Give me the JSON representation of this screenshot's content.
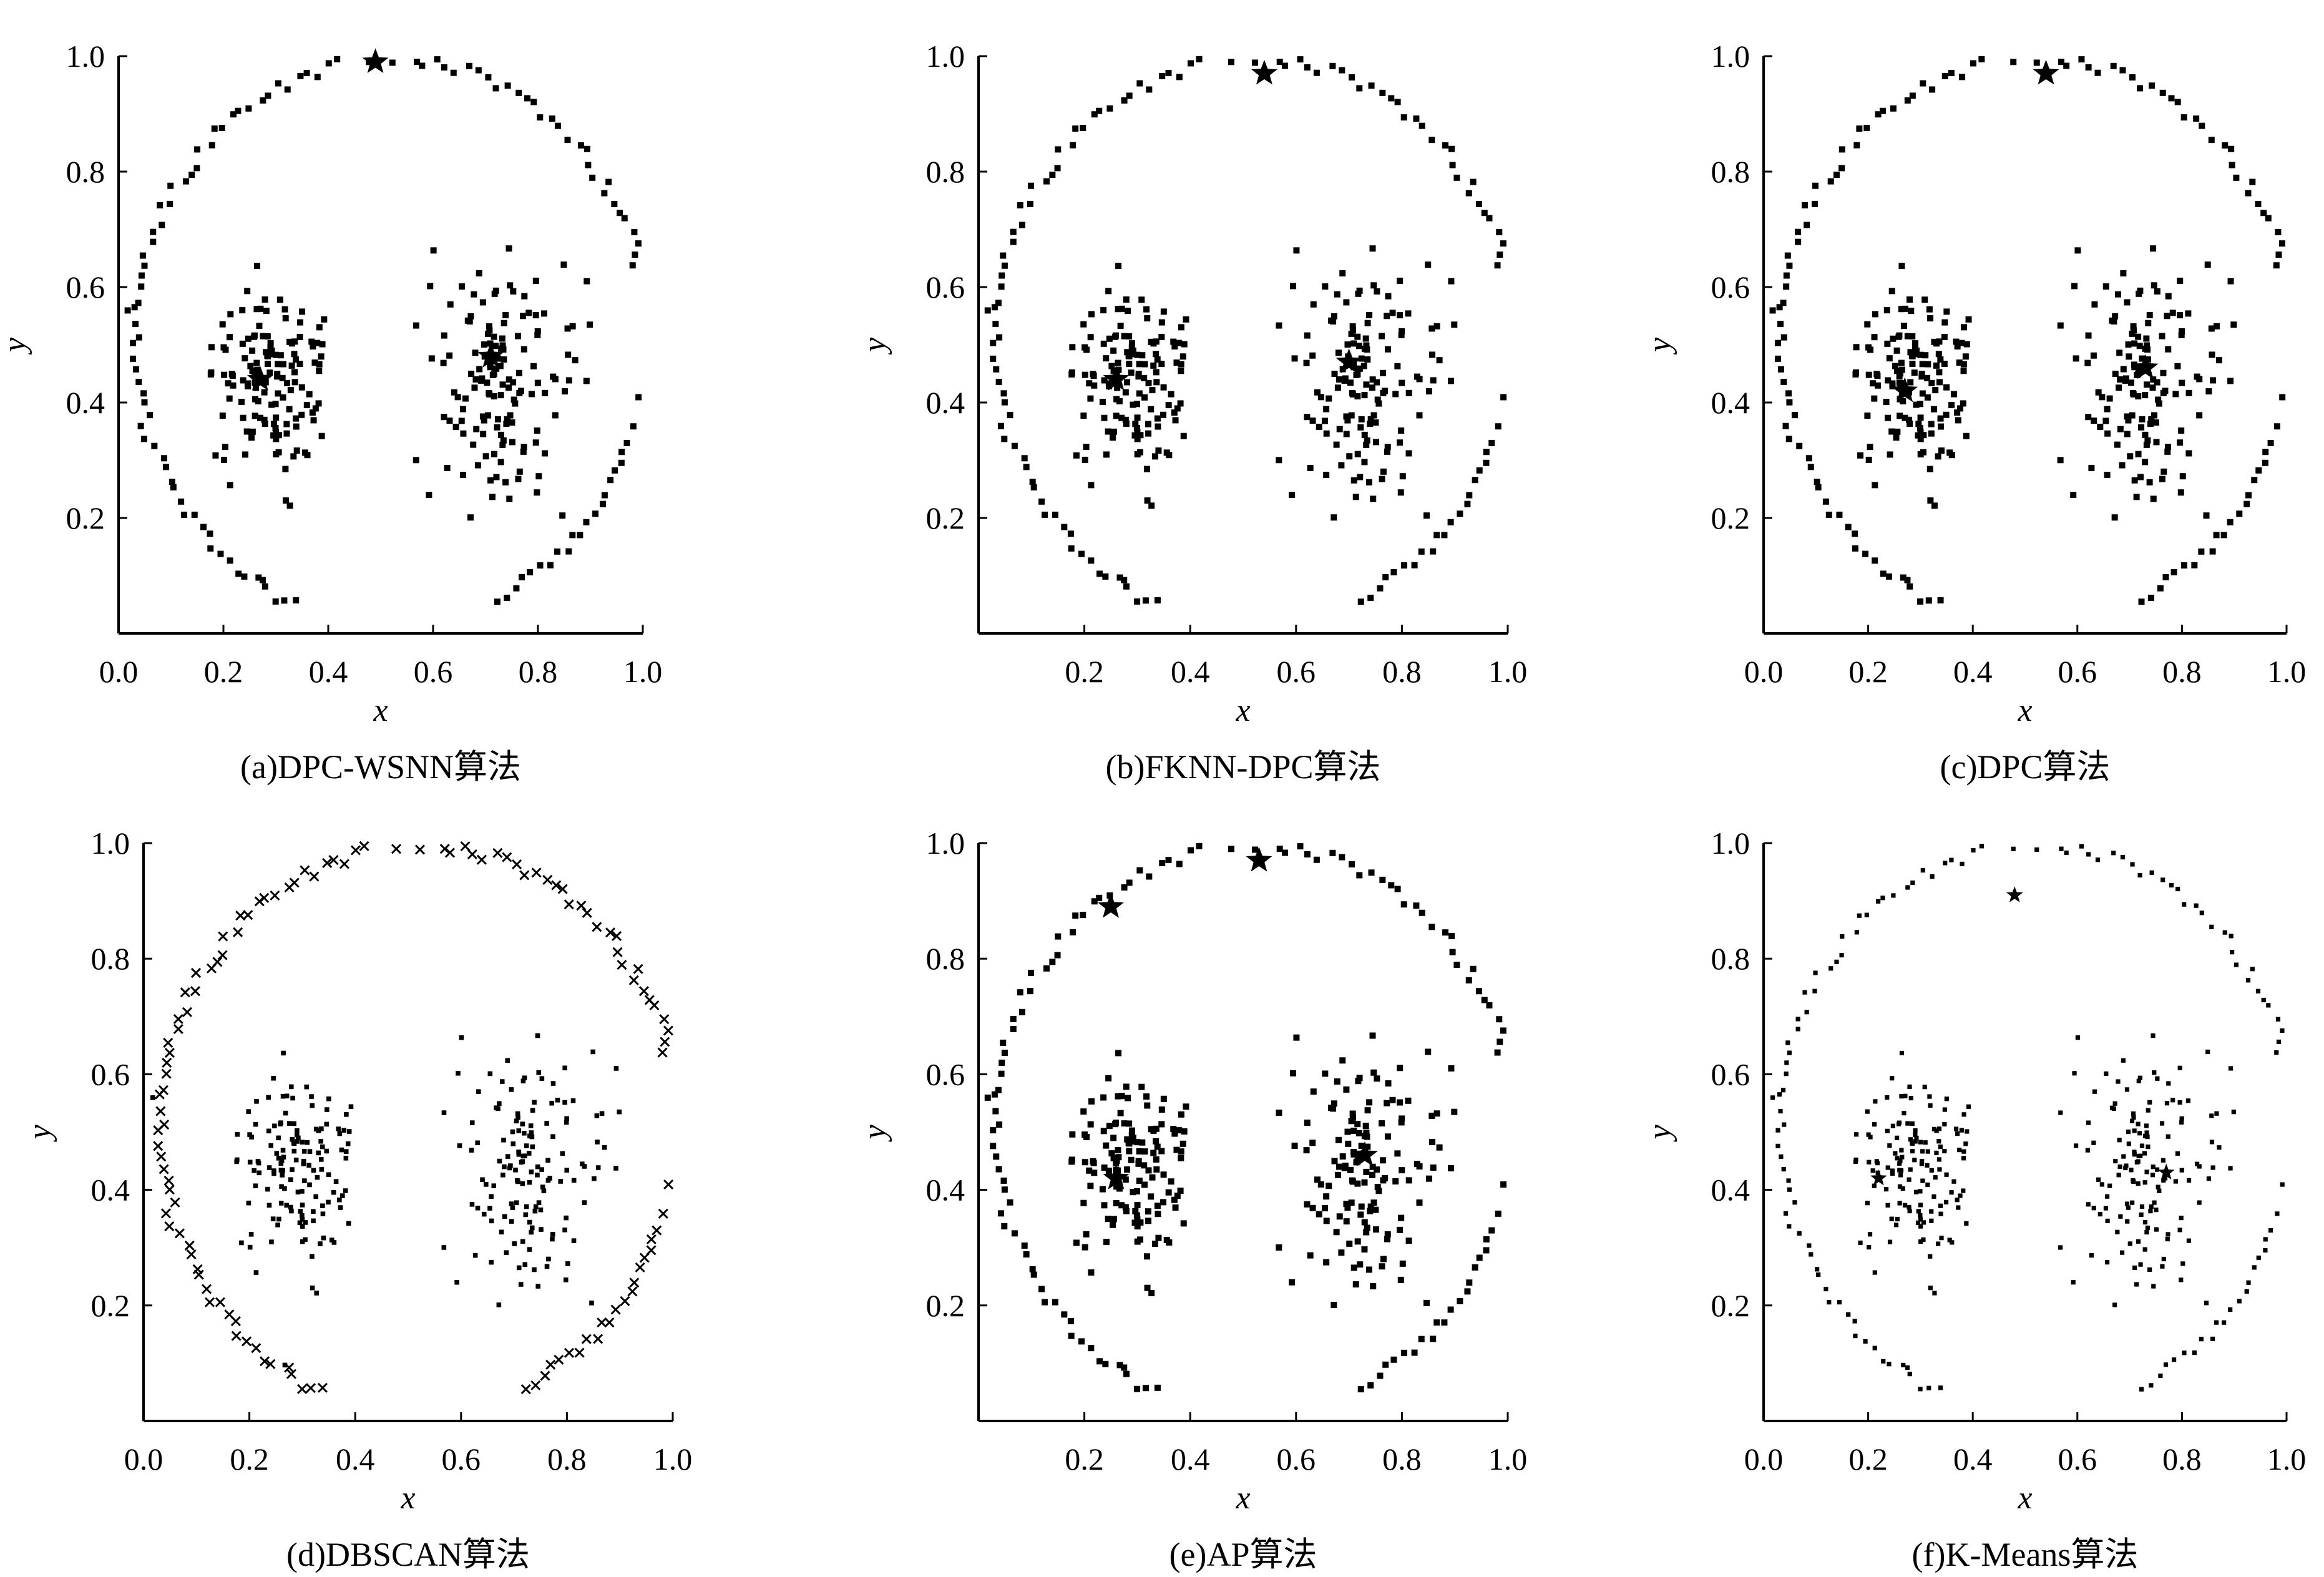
{
  "chart_data": [
    {
      "type": "scatter",
      "caption": "(a)DPC-WSNN算法",
      "xlabel": "x",
      "ylabel": "y",
      "xlim": [
        0,
        1
      ],
      "ylim": [
        0,
        1
      ],
      "xticks": [
        "0.0",
        "0.2",
        "0.4",
        "0.6",
        "0.8",
        "1.0"
      ],
      "yticks": [
        "0.2",
        "0.4",
        "0.6",
        "0.8",
        "1.0"
      ],
      "marker": "dot",
      "centers": [
        [
          0.49,
          0.99
        ],
        [
          0.27,
          0.44
        ],
        [
          0.71,
          0.48
        ]
      ]
    },
    {
      "type": "scatter",
      "caption": "(b)FKNN-DPC算法",
      "xlabel": "x",
      "ylabel": "y",
      "xlim": [
        0,
        1
      ],
      "ylim": [
        0,
        1
      ],
      "xticks": [
        "0.2",
        "0.4",
        "0.6",
        "0.8",
        "1.0"
      ],
      "yticks": [
        "0.2",
        "0.4",
        "0.6",
        "0.8",
        "1.0"
      ],
      "marker": "dot",
      "centers": [
        [
          0.54,
          0.97
        ],
        [
          0.26,
          0.44
        ],
        [
          0.7,
          0.47
        ]
      ]
    },
    {
      "type": "scatter",
      "caption": "(c)DPC算法",
      "xlabel": "x",
      "ylabel": "y",
      "xlim": [
        0,
        1
      ],
      "ylim": [
        0,
        1
      ],
      "xticks": [
        "0.0",
        "0.2",
        "0.4",
        "0.6",
        "0.8",
        "1.0"
      ],
      "yticks": [
        "0.2",
        "0.4",
        "0.6",
        "0.8",
        "1.0"
      ],
      "marker": "dot",
      "centers": [
        [
          0.54,
          0.97
        ],
        [
          0.27,
          0.42
        ],
        [
          0.73,
          0.46
        ]
      ]
    },
    {
      "type": "scatter",
      "caption": "(d)DBSCAN算法",
      "xlabel": "x",
      "ylabel": "y",
      "xlim": [
        0,
        1
      ],
      "ylim": [
        0,
        1
      ],
      "xticks": [
        "0.0",
        "0.2",
        "0.4",
        "0.6",
        "0.8",
        "1.0"
      ],
      "yticks": [
        "0.2",
        "0.4",
        "0.6",
        "0.8",
        "1.0"
      ],
      "marker": "cross-ring-dot-clusters",
      "centers": []
    },
    {
      "type": "scatter",
      "caption": "(e)AP算法",
      "xlabel": "x",
      "ylabel": "y",
      "xlim": [
        0,
        1
      ],
      "ylim": [
        0,
        1
      ],
      "xticks": [
        "0.2",
        "0.4",
        "0.6",
        "0.8",
        "1.0"
      ],
      "yticks": [
        "0.2",
        "0.4",
        "0.6",
        "0.8",
        "1.0"
      ],
      "marker": "dot",
      "centers": [
        [
          0.25,
          0.89
        ],
        [
          0.53,
          0.97
        ],
        [
          0.26,
          0.42
        ],
        [
          0.73,
          0.46
        ]
      ]
    },
    {
      "type": "scatter",
      "caption": "(f)K-Means算法",
      "xlabel": "x",
      "ylabel": "y",
      "xlim": [
        0,
        1
      ],
      "ylim": [
        0,
        1
      ],
      "xticks": [
        "0.0",
        "0.2",
        "0.4",
        "0.6",
        "0.8",
        "1.0"
      ],
      "yticks": [
        "0.2",
        "0.4",
        "0.6",
        "0.8",
        "1.0"
      ],
      "marker": "dot-small",
      "centers": [
        [
          0.48,
          0.91
        ],
        [
          0.22,
          0.42
        ],
        [
          0.77,
          0.43
        ]
      ]
    }
  ]
}
